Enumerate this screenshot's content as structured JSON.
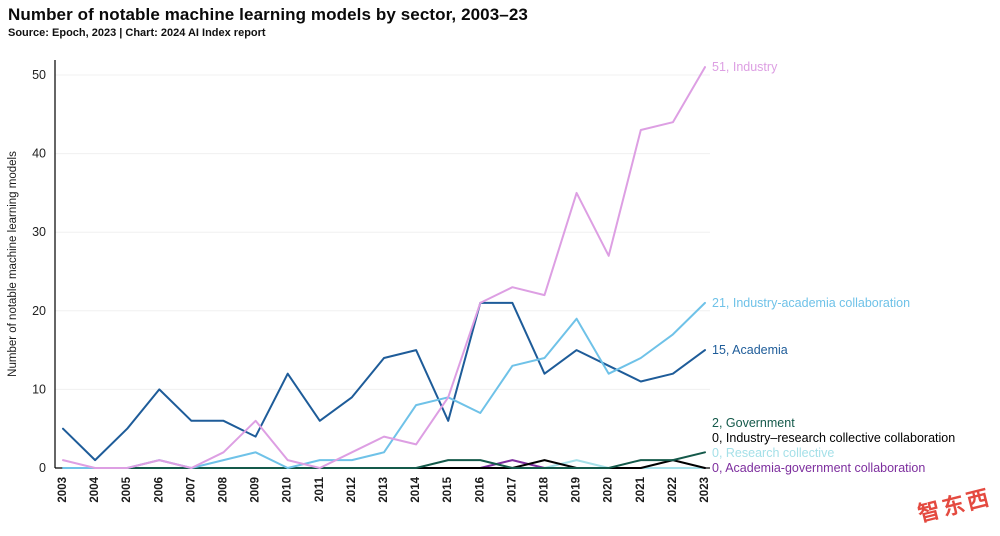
{
  "header": {
    "title": "Number of notable machine learning models by sector, 2003–23",
    "subtitle": "Source: Epoch, 2023 | Chart: 2024 AI Index report"
  },
  "watermark": "智东西",
  "chart_data": {
    "type": "line",
    "title": "Number of notable machine learning models by sector, 2003–23",
    "xlabel": "",
    "ylabel": "Number of notable machine learning models",
    "x": [
      2003,
      2004,
      2005,
      2006,
      2007,
      2008,
      2009,
      2010,
      2011,
      2012,
      2013,
      2014,
      2015,
      2016,
      2017,
      2018,
      2019,
      2020,
      2021,
      2022,
      2023
    ],
    "ylim": [
      0,
      50
    ],
    "yticks": [
      0,
      10,
      20,
      30,
      40,
      50
    ],
    "grid": "faint-horizontal",
    "legend_position": "right-of-line-ends",
    "series": [
      {
        "name": "Industry",
        "label": "51, Industry",
        "color": "#dd9fe3",
        "values": [
          1,
          0,
          0,
          1,
          0,
          2,
          6,
          1,
          0,
          2,
          4,
          3,
          9,
          21,
          23,
          22,
          35,
          27,
          43,
          44,
          51
        ]
      },
      {
        "name": "Industry-academia collaboration",
        "label": "21, Industry-academia collaboration",
        "color": "#6fc2e8",
        "values": [
          0,
          0,
          0,
          1,
          0,
          1,
          2,
          0,
          1,
          1,
          2,
          8,
          9,
          7,
          13,
          14,
          19,
          12,
          14,
          17,
          21
        ]
      },
      {
        "name": "Academia",
        "label": "15, Academia",
        "color": "#1e5c99",
        "values": [
          5,
          1,
          5,
          10,
          6,
          6,
          4,
          12,
          6,
          9,
          14,
          15,
          6,
          21,
          21,
          12,
          15,
          13,
          11,
          12,
          15
        ]
      },
      {
        "name": "Government",
        "label": "2, Government",
        "color": "#14594a",
        "values": [
          0,
          0,
          0,
          0,
          0,
          0,
          0,
          0,
          0,
          0,
          0,
          0,
          1,
          1,
          0,
          0,
          0,
          0,
          1,
          1,
          2
        ]
      },
      {
        "name": "Industry–research collective collaboration",
        "label": "0, Industry–research collective collaboration",
        "color": "#000000",
        "values": [
          0,
          0,
          0,
          0,
          0,
          0,
          0,
          0,
          0,
          0,
          0,
          0,
          0,
          0,
          0,
          1,
          0,
          0,
          0,
          1,
          0
        ]
      },
      {
        "name": "Research collective",
        "label": "0, Research collective",
        "color": "#a5e0e8",
        "values": [
          0,
          0,
          0,
          0,
          0,
          0,
          0,
          0,
          0,
          0,
          0,
          0,
          0,
          0,
          0,
          0,
          1,
          0,
          0,
          0,
          0
        ]
      },
      {
        "name": "Academia-government collaboration",
        "label": "0, Academia-government collaboration",
        "color": "#7d2e9e",
        "values": [
          0,
          0,
          0,
          0,
          0,
          0,
          0,
          0,
          0,
          0,
          0,
          0,
          0,
          0,
          1,
          0,
          0,
          0,
          0,
          0,
          0
        ]
      }
    ]
  }
}
